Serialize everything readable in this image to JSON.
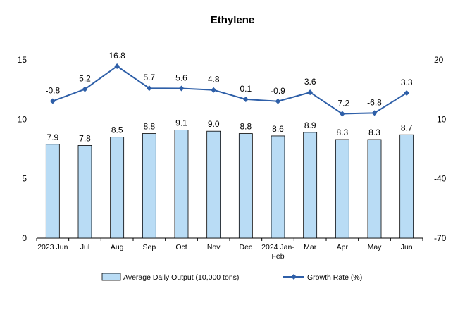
{
  "chart_data": {
    "type": "bar",
    "title": "Ethylene",
    "categories": [
      [
        "2023 Jun"
      ],
      [
        "Jul"
      ],
      [
        "Aug"
      ],
      [
        "Sep"
      ],
      [
        "Oct"
      ],
      [
        "Nov"
      ],
      [
        "Dec"
      ],
      [
        "2024 Jan-",
        "Feb"
      ],
      [
        "Mar"
      ],
      [
        "Apr"
      ],
      [
        "May"
      ],
      [
        "Jun"
      ]
    ],
    "series": [
      {
        "name": "Average Daily Output (10,000 tons)",
        "type": "bar",
        "axis": "left",
        "values": [
          7.9,
          7.8,
          8.5,
          8.8,
          9.1,
          9.0,
          8.8,
          8.6,
          8.9,
          8.3,
          8.3,
          8.7
        ],
        "labels": [
          "7.9",
          "7.8",
          "8.5",
          "8.8",
          "9.1",
          "9.0",
          "8.8",
          "8.6",
          "8.9",
          "8.3",
          "8.3",
          "8.7"
        ]
      },
      {
        "name": "Growth Rate (%)",
        "type": "line",
        "axis": "right",
        "values": [
          -0.8,
          5.2,
          16.8,
          5.7,
          5.6,
          4.8,
          0.1,
          -0.9,
          3.6,
          -7.2,
          -6.8,
          3.3
        ],
        "labels": [
          "-0.8",
          "5.2",
          "16.8",
          "5.7",
          "5.6",
          "4.8",
          "0.1",
          "-0.9",
          "3.6",
          "-7.2",
          "-6.8",
          "3.3"
        ]
      }
    ],
    "left_axis": {
      "min": 0,
      "max": 15,
      "ticks": [
        "0",
        "5",
        "10",
        "15"
      ]
    },
    "right_axis": {
      "min": -70,
      "max": 20,
      "ticks": [
        "-70",
        "-40",
        "-10",
        "20"
      ]
    },
    "grid": false,
    "legend_position": "bottom",
    "colors": {
      "bar_fill": "#b9dcf5",
      "bar_stroke": "#000000",
      "line": "#2e5fa8",
      "marker": "#2e5fa8"
    }
  }
}
